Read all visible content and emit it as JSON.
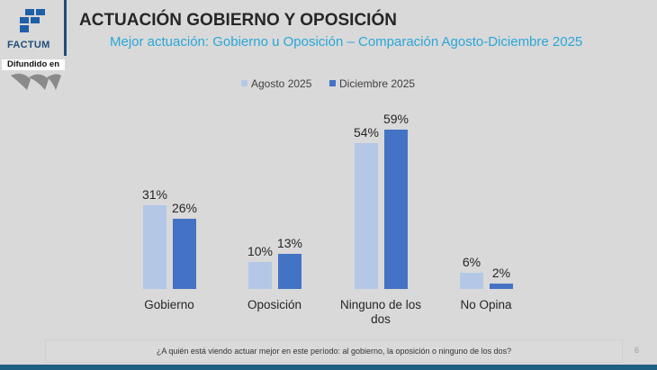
{
  "header": {
    "title": "ACTUACIÓN GOBIERNO Y OPOSICIÓN",
    "logo_text": "FACTUM",
    "badge": "Difundido en"
  },
  "footer": {
    "question": "¿A quién está viendo actuar mejor en este período: al gobierno, la oposición o ninguno de los dos?",
    "page": "6"
  },
  "chart_data": {
    "type": "bar",
    "title": "Mejor actuación: Gobierno u Oposición – Comparación Agosto-Diciembre 2025",
    "categories": [
      "Gobierno",
      "Oposición",
      "Ninguno de los dos",
      "No Opina"
    ],
    "series": [
      {
        "name": "Agosto 2025",
        "values": [
          31,
          10,
          54,
          6
        ],
        "color": "#b4c7e7"
      },
      {
        "name": "Diciembre 2025",
        "values": [
          26,
          13,
          59,
          2
        ],
        "color": "#4472c4"
      }
    ],
    "value_suffix": "%",
    "legend": "top",
    "grid": false
  }
}
